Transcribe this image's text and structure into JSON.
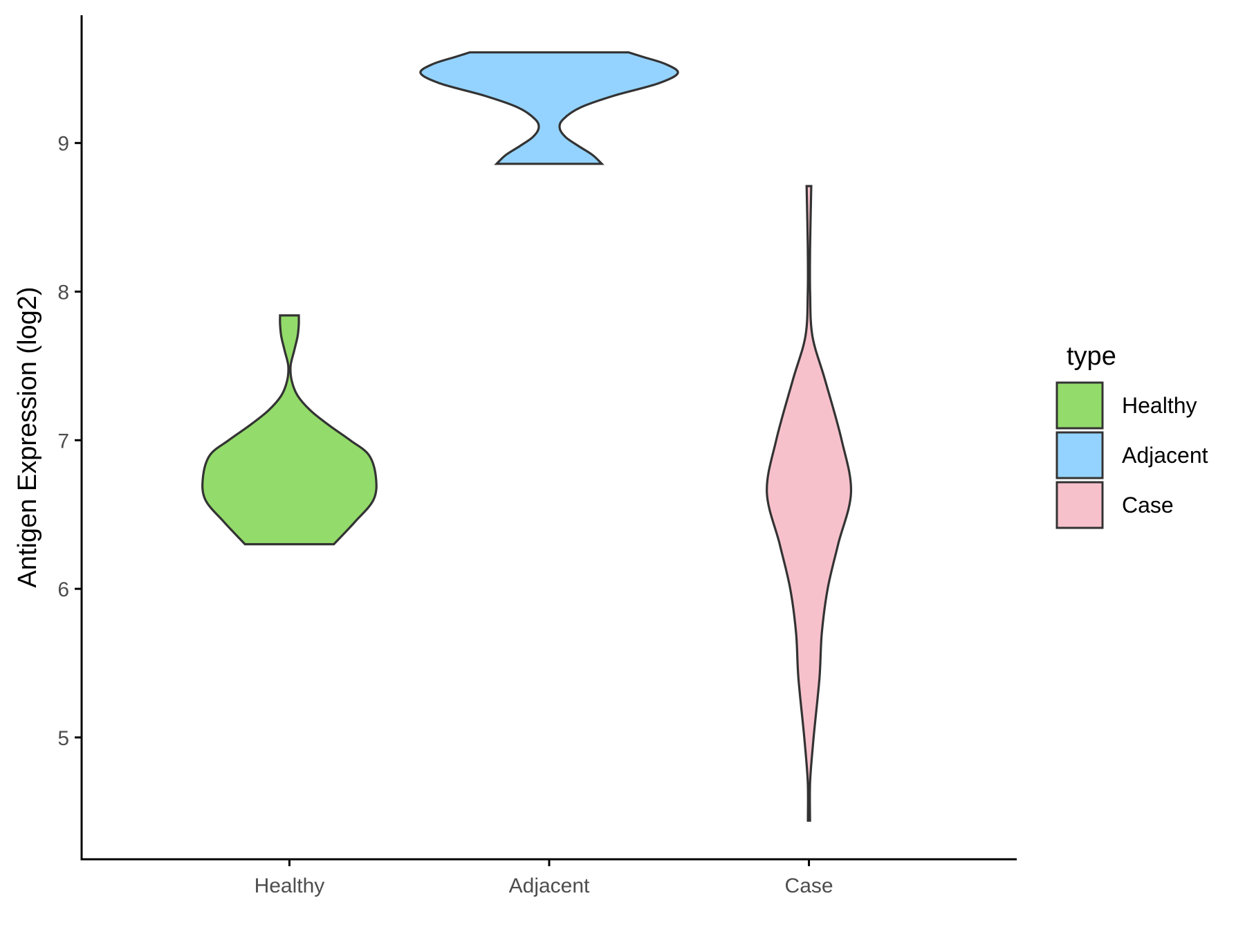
{
  "chart_data": {
    "type": "violin",
    "title": "",
    "xlabel": "",
    "ylabel": "Antigen Expression (log2)",
    "categories": [
      "Healthy",
      "Adjacent",
      "Case"
    ],
    "y_ticks": [
      5,
      6,
      7,
      8,
      9
    ],
    "ylim": [
      4.18,
      9.86
    ],
    "legend": {
      "title": "type",
      "position": "right",
      "entries": [
        "Healthy",
        "Adjacent",
        "Case"
      ]
    },
    "colors": {
      "Healthy": "#93DB6A",
      "Adjacent": "#94D3FF",
      "Case": "#F7C1CC"
    },
    "series": [
      {
        "category": "Healthy",
        "min": 6.3,
        "max": 7.84,
        "density_profile": [
          [
            6.3,
            0.38
          ],
          [
            6.45,
            0.56
          ],
          [
            6.6,
            0.72
          ],
          [
            6.75,
            0.74
          ],
          [
            6.9,
            0.68
          ],
          [
            7.0,
            0.52
          ],
          [
            7.1,
            0.34
          ],
          [
            7.2,
            0.18
          ],
          [
            7.3,
            0.07
          ],
          [
            7.4,
            0.02
          ],
          [
            7.5,
            0.01
          ],
          [
            7.6,
            0.04
          ],
          [
            7.7,
            0.07
          ],
          [
            7.78,
            0.08
          ],
          [
            7.84,
            0.08
          ]
        ]
      },
      {
        "category": "Adjacent",
        "min": 8.86,
        "max": 9.61,
        "density_profile": [
          [
            8.86,
            0.45
          ],
          [
            8.92,
            0.37
          ],
          [
            8.98,
            0.25
          ],
          [
            9.04,
            0.14
          ],
          [
            9.1,
            0.09
          ],
          [
            9.16,
            0.12
          ],
          [
            9.24,
            0.27
          ],
          [
            9.32,
            0.56
          ],
          [
            9.4,
            0.93
          ],
          [
            9.47,
            1.1
          ],
          [
            9.53,
            1.0
          ],
          [
            9.58,
            0.8
          ],
          [
            9.61,
            0.68
          ]
        ]
      },
      {
        "category": "Case",
        "min": 4.44,
        "max": 8.71,
        "density_profile": [
          [
            4.44,
            0.0
          ],
          [
            4.7,
            0.01
          ],
          [
            5.0,
            0.04
          ],
          [
            5.4,
            0.09
          ],
          [
            5.7,
            0.11
          ],
          [
            6.0,
            0.16
          ],
          [
            6.3,
            0.25
          ],
          [
            6.65,
            0.36
          ],
          [
            7.0,
            0.28
          ],
          [
            7.4,
            0.14
          ],
          [
            7.7,
            0.03
          ],
          [
            8.0,
            0.01
          ],
          [
            8.3,
            0.01
          ],
          [
            8.71,
            0.02
          ]
        ]
      }
    ]
  }
}
